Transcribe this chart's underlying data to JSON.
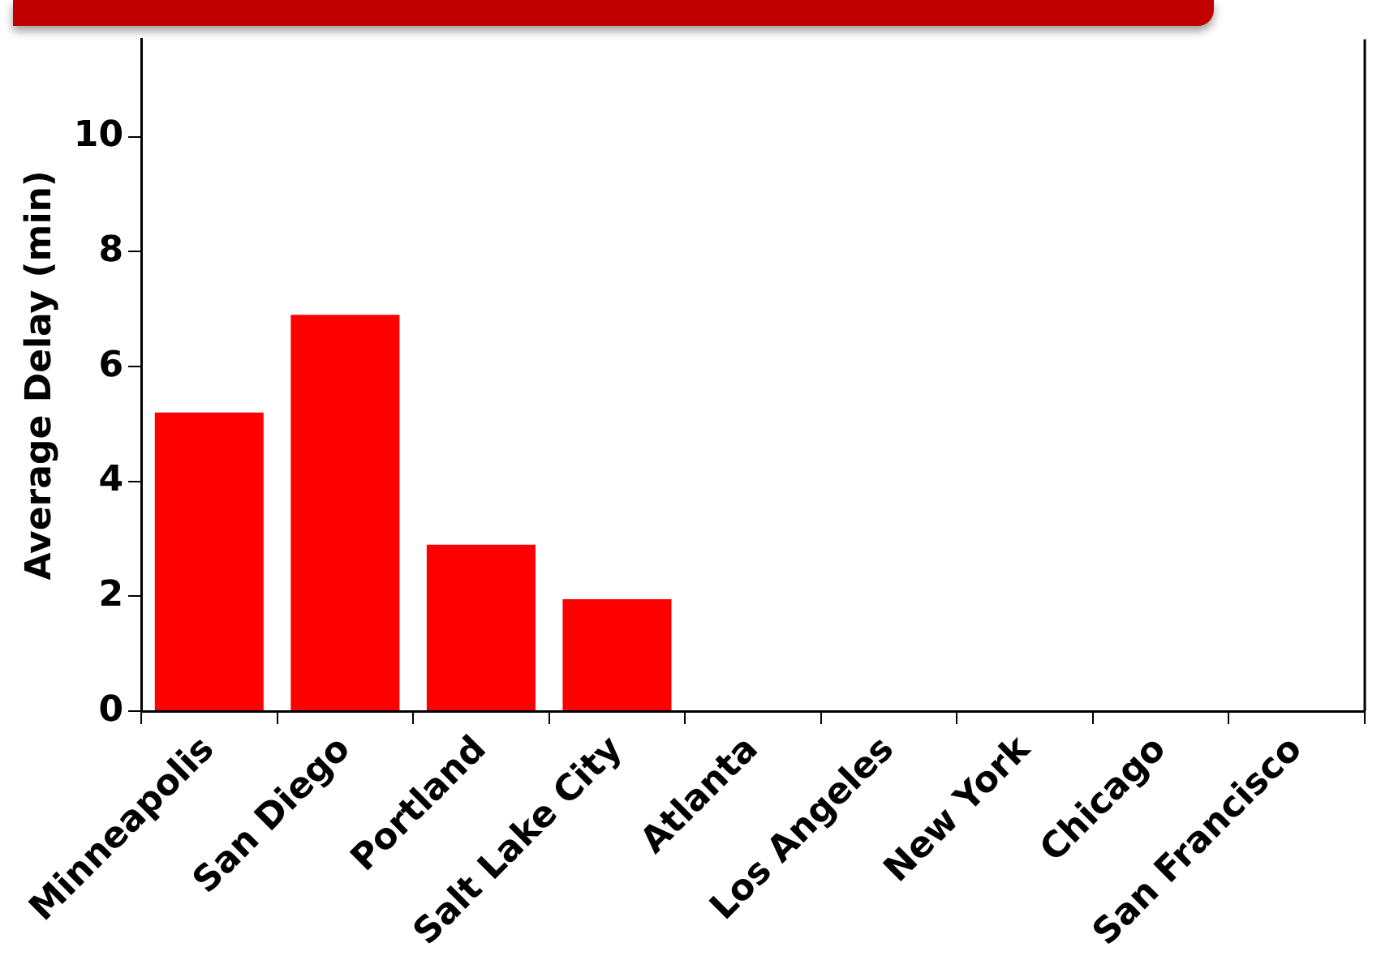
{
  "chart_data": {
    "type": "bar",
    "ylabel": "Average Delay (min)",
    "categories": [
      "Minneapolis",
      "San Diego",
      "Portland",
      "Salt Lake City",
      "Atlanta",
      "Los Angeles",
      "New York",
      "Chicago",
      "San Francisco"
    ],
    "values": [
      5.2,
      6.9,
      2.9,
      1.95,
      null,
      null,
      null,
      null,
      null
    ],
    "color": "#ff0000",
    "ylim": [
      0,
      11.7
    ],
    "yticks": [
      0,
      2,
      4,
      6,
      8,
      10
    ],
    "grid": false,
    "legend": false
  }
}
